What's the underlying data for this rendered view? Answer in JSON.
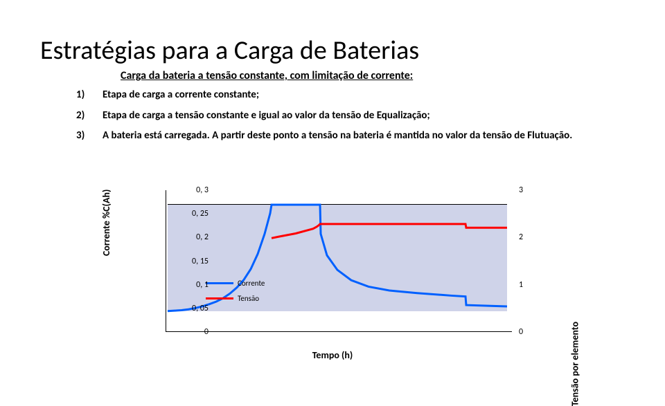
{
  "title": "Estratégias para a Carga de Baterias",
  "subtitle": "Carga da bateria a tensão constante, com limitação de corrente:",
  "items": [
    {
      "num": "1)",
      "text": "Etapa de carga a corrente constante;"
    },
    {
      "num": "2)",
      "text": "Etapa de carga a tensão constante e igual ao valor da tensão de Equalização;"
    },
    {
      "num": "3)",
      "text": "A bateria está carregada. A partir deste ponto a tensão na bateria é mantida no valor da tensão de Flutuação."
    }
  ],
  "chart": {
    "ylabel_left": "Corrente %C(Ah)",
    "ylabel_right": "Tensão por elemento",
    "xlabel": "Tempo (h)",
    "left_ticks": [
      "0, 3",
      "0, 25",
      "0, 2",
      "0, 15",
      "0, 1",
      "0, 05",
      "0"
    ],
    "right_ticks": [
      "3",
      "2",
      "1",
      "0"
    ],
    "right_max": 3,
    "left_max": 0.3,
    "plot_bg": "#cfd3e9",
    "colors": {
      "voltage": "#ff0000",
      "current": "#0060ff"
    },
    "line_width": 3,
    "legend": [
      {
        "label": "Corrente",
        "color": "#0060ff"
      },
      {
        "label": "Tensão",
        "color": "#ff0000"
      }
    ],
    "current_series": [
      [
        0,
        0.052
      ],
      [
        10,
        0.053
      ],
      [
        20,
        0.054
      ],
      [
        30,
        0.056
      ],
      [
        40,
        0.059
      ],
      [
        50,
        0.063
      ],
      [
        60,
        0.068
      ],
      [
        70,
        0.074
      ],
      [
        80,
        0.082
      ],
      [
        90,
        0.093
      ],
      [
        100,
        0.107
      ],
      [
        110,
        0.125
      ],
      [
        120,
        0.15
      ],
      [
        130,
        0.185
      ],
      [
        140,
        0.232
      ],
      [
        148,
        0.28
      ],
      [
        150,
        0.3
      ],
      [
        155,
        0.3
      ],
      [
        185,
        0.3
      ],
      [
        220,
        0.3
      ],
      [
        221,
        0.232
      ],
      [
        230,
        0.182
      ],
      [
        245,
        0.148
      ],
      [
        265,
        0.124
      ],
      [
        290,
        0.109
      ],
      [
        320,
        0.1
      ],
      [
        360,
        0.094
      ],
      [
        410,
        0.088
      ],
      [
        430,
        0.086
      ],
      [
        431,
        0.066
      ],
      [
        470,
        0.064
      ],
      [
        490,
        0.063
      ]
    ],
    "voltage_series": [
      [
        150,
        2.0
      ],
      [
        160,
        2.03
      ],
      [
        185,
        2.1
      ],
      [
        210,
        2.2
      ],
      [
        215,
        2.24
      ],
      [
        218,
        2.27
      ],
      [
        220,
        2.3
      ],
      [
        260,
        2.3
      ],
      [
        320,
        2.3
      ],
      [
        400,
        2.3
      ],
      [
        430,
        2.3
      ],
      [
        431,
        2.22
      ],
      [
        460,
        2.22
      ],
      [
        490,
        2.22
      ]
    ]
  }
}
